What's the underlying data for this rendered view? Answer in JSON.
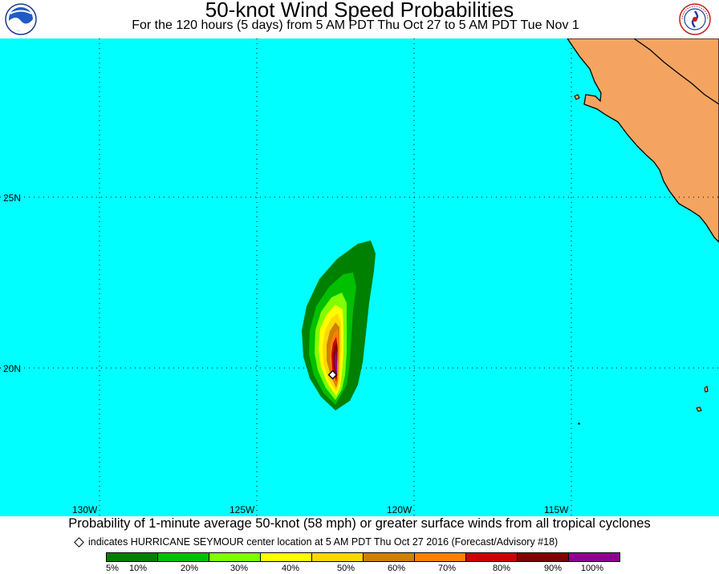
{
  "header": {
    "title": "50-knot Wind Speed Probabilities",
    "subtitle": "For the 120 hours (5 days) from 5 AM PDT Thu Oct 27 to 5 AM PDT Tue Nov 1",
    "logo_left_text": "NOAA",
    "logo_right_text": "NATIONAL WEATHER SERVICE"
  },
  "map": {
    "ocean_color": "#00FFFF",
    "land_color": "#F4A460",
    "lat_labels": [
      "25N",
      "20N"
    ],
    "lon_labels": [
      "130W",
      "125W",
      "120W",
      "115W"
    ],
    "storm_center": {
      "lat": 19.75,
      "lon": -122.4,
      "label": "Hurricane Seymour center"
    }
  },
  "footer": {
    "caption": "Probability of 1-minute average 50-knot (58 mph) or greater surface winds from all tropical cyclones",
    "note": "indicates HURRICANE SEYMOUR center location at 5 AM PDT Thu Oct 27 2016 (Forecast/Advisory #18)"
  },
  "legend": {
    "colors": [
      "#008000",
      "#00C000",
      "#80FF00",
      "#FFFF00",
      "#FFD700",
      "#D08000",
      "#FF8000",
      "#CC0000",
      "#800000",
      "#900090"
    ],
    "labels": [
      "5%",
      "10%",
      "20%",
      "30%",
      "40%",
      "50%",
      "60%",
      "70%",
      "80%",
      "90%",
      "100%"
    ]
  }
}
